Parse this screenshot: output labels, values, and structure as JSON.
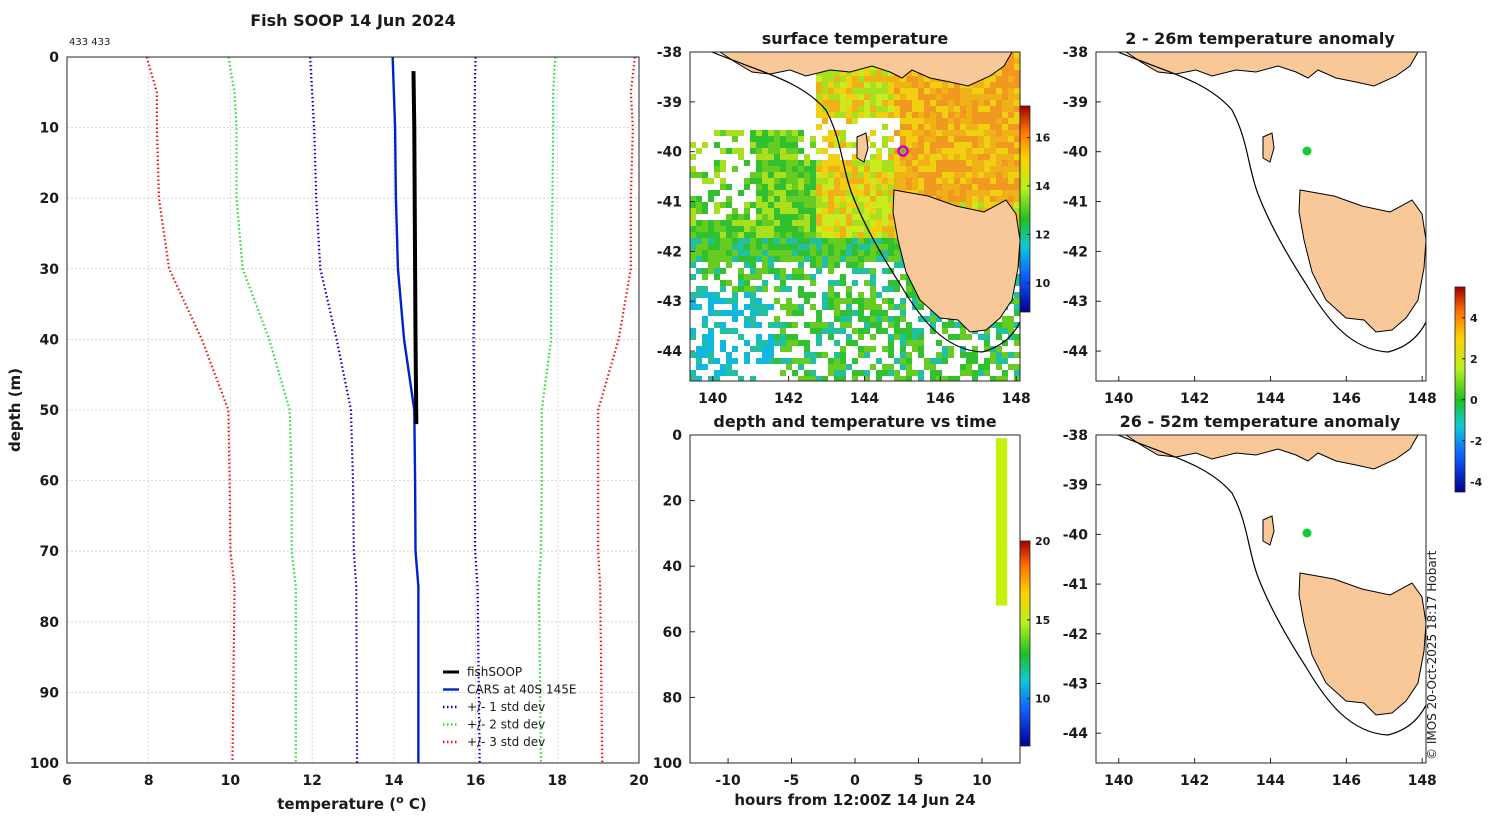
{
  "figure": {
    "copyright": "© IMOS 20-Oct-2025 18:17 Hobart",
    "colors": {
      "fishsoop": "#000000",
      "cars": "#0022cc",
      "std1": "#0000cc",
      "std2": "#22dd22",
      "std3": "#ee1111",
      "land": "#f8c898",
      "marker_ring": "#cc00cc",
      "marker_dot": "#11cc33"
    }
  },
  "chart_data": [
    {
      "id": "profile",
      "type": "line",
      "title": "Fish SOOP 14 Jun 2024",
      "annotation": "433 433",
      "xlabel": "temperature (",
      "xlabel_sup": "o",
      "xlabel_tail": " C)",
      "ylabel": "depth (m)",
      "xlim": [
        6,
        20
      ],
      "ylim": [
        0,
        100
      ],
      "y_inverted": true,
      "xticks": [
        6,
        8,
        10,
        12,
        14,
        16,
        18,
        20
      ],
      "yticks": [
        0,
        10,
        20,
        30,
        40,
        50,
        60,
        70,
        80,
        90,
        100
      ],
      "grid": true,
      "legend_location": "bottom-right",
      "series": [
        {
          "name": "fishSOOP",
          "style": "solid-thick",
          "color_key": "fishsoop",
          "points": [
            [
              14.48,
              2
            ],
            [
              14.5,
              10
            ],
            [
              14.51,
              20
            ],
            [
              14.52,
              30
            ],
            [
              14.53,
              40
            ],
            [
              14.55,
              52
            ]
          ]
        },
        {
          "name": "CARS at 40S 145E",
          "style": "solid",
          "color_key": "cars",
          "points": [
            [
              13.97,
              0
            ],
            [
              14.0,
              5
            ],
            [
              14.03,
              10
            ],
            [
              14.05,
              20
            ],
            [
              14.1,
              30
            ],
            [
              14.25,
              40
            ],
            [
              14.5,
              50
            ],
            [
              14.52,
              60
            ],
            [
              14.53,
              70
            ],
            [
              14.6,
              75
            ],
            [
              14.6,
              100
            ]
          ]
        },
        {
          "name": "+/- 1 std dev",
          "style": "dotted",
          "color_key": "std1",
          "points_lower": [
            [
              11.95,
              0
            ],
            [
              12.0,
              5
            ],
            [
              12.05,
              10
            ],
            [
              12.1,
              20
            ],
            [
              12.2,
              30
            ],
            [
              12.6,
              40
            ],
            [
              12.95,
              50
            ],
            [
              13.0,
              60
            ],
            [
              13.02,
              70
            ],
            [
              13.08,
              75
            ],
            [
              13.1,
              100
            ]
          ],
          "points_upper": [
            [
              16.0,
              0
            ],
            [
              15.98,
              5
            ],
            [
              15.97,
              10
            ],
            [
              15.98,
              20
            ],
            [
              15.98,
              30
            ],
            [
              15.95,
              40
            ],
            [
              15.97,
              50
            ],
            [
              15.98,
              60
            ],
            [
              15.99,
              70
            ],
            [
              16.05,
              75
            ],
            [
              16.1,
              100
            ]
          ]
        },
        {
          "name": "+/- 2 std dev",
          "style": "dotted",
          "color_key": "std2",
          "points_lower": [
            [
              9.95,
              0
            ],
            [
              10.1,
              5
            ],
            [
              10.15,
              10
            ],
            [
              10.15,
              20
            ],
            [
              10.3,
              30
            ],
            [
              10.95,
              40
            ],
            [
              11.45,
              50
            ],
            [
              11.5,
              60
            ],
            [
              11.5,
              70
            ],
            [
              11.6,
              75
            ],
            [
              11.6,
              100
            ]
          ],
          "points_upper": [
            [
              17.95,
              0
            ],
            [
              17.9,
              5
            ],
            [
              17.9,
              10
            ],
            [
              17.88,
              20
            ],
            [
              17.85,
              30
            ],
            [
              17.85,
              40
            ],
            [
              17.62,
              50
            ],
            [
              17.62,
              60
            ],
            [
              17.6,
              70
            ],
            [
              17.55,
              75
            ],
            [
              17.6,
              100
            ]
          ]
        },
        {
          "name": "+/- 3 std dev",
          "style": "dotted",
          "color_key": "std3",
          "points_lower": [
            [
              7.95,
              0
            ],
            [
              8.2,
              5
            ],
            [
              8.2,
              10
            ],
            [
              8.25,
              20
            ],
            [
              8.5,
              30
            ],
            [
              9.3,
              40
            ],
            [
              9.95,
              50
            ],
            [
              9.98,
              60
            ],
            [
              10.0,
              70
            ],
            [
              10.1,
              75
            ],
            [
              10.05,
              100
            ]
          ],
          "points_upper": [
            [
              19.9,
              0
            ],
            [
              19.8,
              5
            ],
            [
              19.85,
              10
            ],
            [
              19.8,
              20
            ],
            [
              19.8,
              30
            ],
            [
              19.5,
              40
            ],
            [
              19.0,
              50
            ],
            [
              19.0,
              60
            ],
            [
              19.0,
              70
            ],
            [
              19.05,
              75
            ],
            [
              19.1,
              100
            ]
          ]
        }
      ]
    },
    {
      "id": "surface_temperature",
      "type": "heatmap",
      "title": "surface temperature",
      "xlim": [
        139.4,
        148.1
      ],
      "ylim": [
        -44.6,
        -38
      ],
      "xticks": [
        140,
        142,
        144,
        146,
        148
      ],
      "yticks": [
        -38,
        -39,
        -40,
        -41,
        -42,
        -43,
        -44
      ],
      "colorbar": {
        "range": [
          8.8,
          17.3
        ],
        "ticks": [
          10,
          12,
          14,
          16
        ]
      },
      "marker": {
        "lon": 145,
        "lat": -40
      }
    },
    {
      "id": "depth_time",
      "type": "scatter",
      "title": "depth and temperature vs time",
      "xlabel": "hours from 12:00Z 14 Jun 24",
      "xlim": [
        -13,
        13
      ],
      "ylim": [
        0,
        100
      ],
      "y_inverted": true,
      "xticks": [
        -10,
        -5,
        0,
        5,
        10
      ],
      "yticks": [
        0,
        20,
        40,
        60,
        80,
        100
      ],
      "colorbar": {
        "range": [
          7,
          20
        ],
        "ticks": [
          10,
          15,
          20
        ]
      },
      "samples": {
        "hours_from": 11.1,
        "hours_to": 12.0,
        "depth_from": 1,
        "depth_to": 52,
        "temperature": 14.5
      }
    },
    {
      "id": "anomaly_2_26",
      "type": "heatmap",
      "title": "2 - 26m temperature anomaly",
      "xlim": [
        139.4,
        148.1
      ],
      "ylim": [
        -44.6,
        -38
      ],
      "xticks": [
        140,
        142,
        144,
        146,
        148
      ],
      "yticks": [
        -38,
        -39,
        -40,
        -41,
        -42,
        -43,
        -44
      ],
      "marker": {
        "lon": 145,
        "lat": -40,
        "anomaly": 0.1
      }
    },
    {
      "id": "anomaly_26_52",
      "type": "heatmap",
      "title": "26 - 52m temperature anomaly",
      "xlim": [
        139.4,
        148.1
      ],
      "ylim": [
        -44.6,
        -38
      ],
      "xticks": [
        140,
        142,
        144,
        146,
        148
      ],
      "yticks": [
        -38,
        -39,
        -40,
        -41,
        -42,
        -43,
        -44
      ],
      "marker": {
        "lon": 145,
        "lat": -40,
        "anomaly": 0.1
      }
    },
    {
      "id": "anomaly_colorbar",
      "type": "heatmap",
      "colorbar": {
        "range": [
          -4.5,
          5.5
        ],
        "ticks": [
          -4,
          -2,
          0,
          2,
          4
        ]
      }
    }
  ]
}
